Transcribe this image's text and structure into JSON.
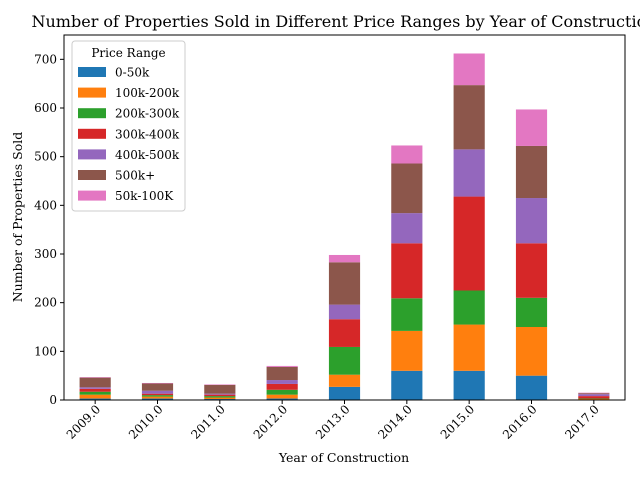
{
  "chart_data": {
    "type": "bar",
    "stacked": true,
    "title": "Number of Properties Sold in Different Price Ranges by Year of Construction",
    "xlabel": "Year of Construction",
    "ylabel": "Number of Properties Sold",
    "ylim": [
      0,
      750
    ],
    "yticks": [
      "0",
      "100",
      "200",
      "300",
      "400",
      "500",
      "600",
      "700"
    ],
    "grid": false,
    "legend_title": "Price Range",
    "legend_position": "top-left",
    "categories": [
      "2009.0",
      "2010.0",
      "2011.0",
      "2012.0",
      "2013.0",
      "2014.0",
      "2015.0",
      "2016.0",
      "2017.0"
    ],
    "series": [
      {
        "name": "0-50k",
        "color": "#1f77b4",
        "values": [
          3,
          3,
          2,
          3,
          27,
          60,
          60,
          50,
          1
        ]
      },
      {
        "name": "100k-200k",
        "color": "#ff7f0e",
        "values": [
          8,
          4,
          3,
          8,
          25,
          82,
          95,
          100,
          1
        ]
      },
      {
        "name": "200k-300k",
        "color": "#2ca02c",
        "values": [
          6,
          3,
          3,
          10,
          57,
          67,
          70,
          60,
          1
        ]
      },
      {
        "name": "300k-400k",
        "color": "#d62728",
        "values": [
          6,
          3,
          3,
          12,
          57,
          113,
          193,
          112,
          5
        ]
      },
      {
        "name": "400k-500k",
        "color": "#9467bd",
        "values": [
          3,
          6,
          2,
          8,
          30,
          62,
          97,
          93,
          4
        ]
      },
      {
        "name": "500k+",
        "color": "#8c564b",
        "values": [
          20,
          15,
          18,
          27,
          87,
          102,
          132,
          107,
          2
        ]
      },
      {
        "name": "50k-100K",
        "color": "#e377c2",
        "values": [
          1,
          1,
          1,
          2,
          15,
          37,
          65,
          75,
          1
        ]
      }
    ]
  }
}
